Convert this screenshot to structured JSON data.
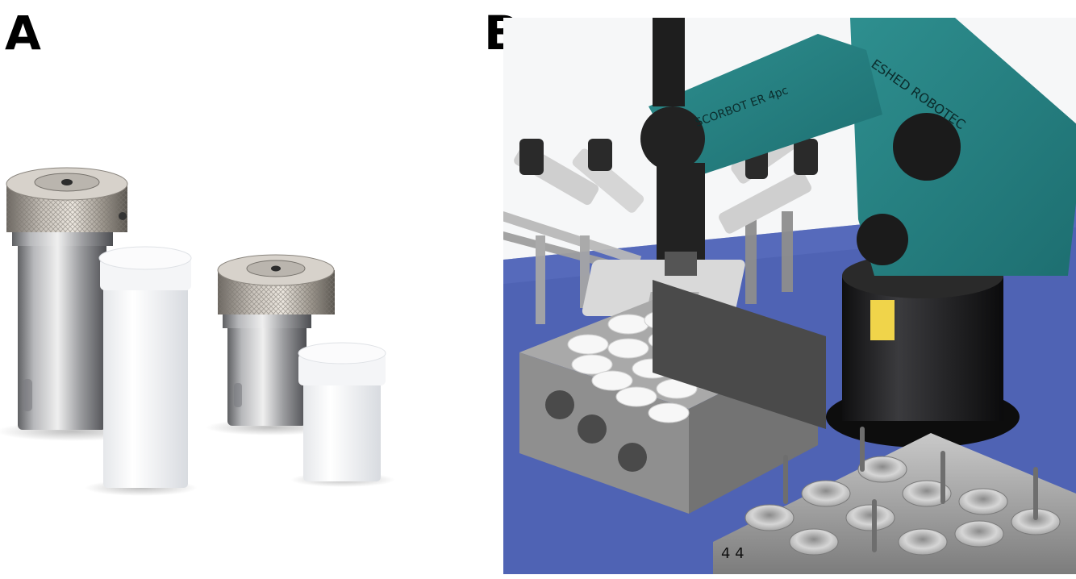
{
  "figure": {
    "panels": [
      {
        "label": "A",
        "image_name": "pressure-vessels-photo"
      },
      {
        "label": "B",
        "image_name": "robotic-arm-lab-photo",
        "visible_text": {
          "arm_upper": "ESHED ROBOTEC",
          "arm_lower": "SCORBOT ER 4pc",
          "plate_mark": "4 4"
        }
      }
    ]
  }
}
